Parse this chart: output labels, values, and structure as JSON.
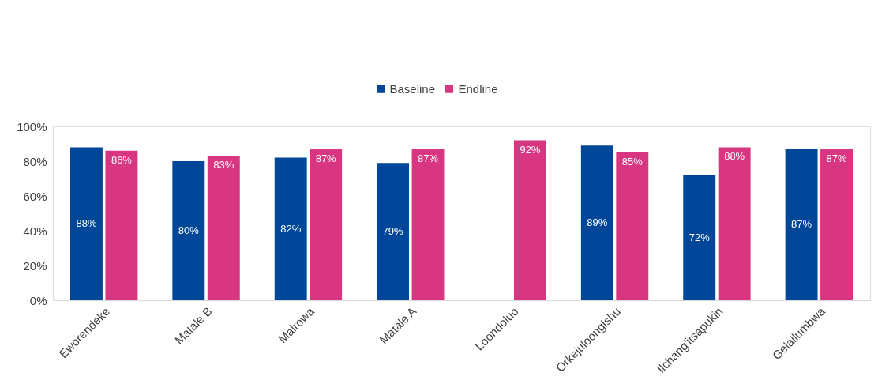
{
  "chart_data": {
    "type": "bar",
    "categories": [
      "Eworendeke",
      "Matale B",
      "Mairowa",
      "Matale A",
      "Loondoluo",
      "Orkejuloongishu",
      "Ilchang'itsapukin",
      "Gelailumbwa"
    ],
    "series": [
      {
        "name": "Baseline",
        "color": "#00479a",
        "values": [
          88,
          80,
          82,
          79,
          null,
          89,
          72,
          87
        ],
        "value_labels": [
          "88%",
          "80%",
          "82%",
          "79%",
          null,
          "89%",
          "72%",
          "87%"
        ]
      },
      {
        "name": "Endline",
        "color": "#d83681",
        "values": [
          86,
          83,
          87,
          87,
          92,
          85,
          88,
          87
        ],
        "value_labels": [
          "86%",
          "83%",
          "87%",
          "87%",
          "92%",
          "85%",
          "88%",
          "87%"
        ]
      }
    ],
    "ylim": [
      0,
      100
    ],
    "yticks": [
      {
        "value": 0,
        "label": "0%"
      },
      {
        "value": 20,
        "label": "20%"
      },
      {
        "value": 40,
        "label": "40%"
      },
      {
        "value": 60,
        "label": "60%"
      },
      {
        "value": 80,
        "label": "80%"
      },
      {
        "value": 100,
        "label": "100%"
      }
    ],
    "legend": "top",
    "grid": false
  }
}
